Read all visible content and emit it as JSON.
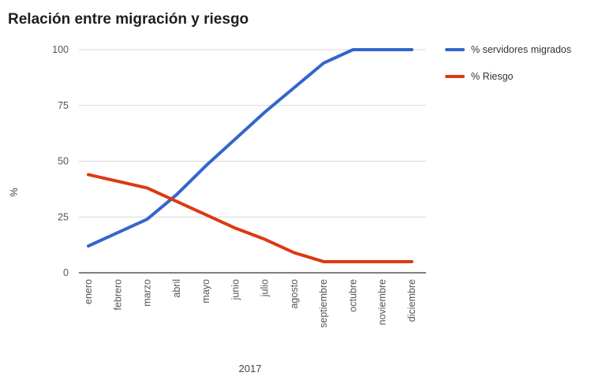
{
  "chart_data": {
    "type": "line",
    "title": "Relación entre migración y riesgo",
    "xlabel": "2017",
    "ylabel": "%",
    "ylim": [
      0,
      100
    ],
    "yticks": [
      "0",
      "25",
      "50",
      "75",
      "100"
    ],
    "grid": true,
    "legend_position": "right",
    "categories": [
      "enero",
      "febrero",
      "marzo",
      "abril",
      "mayo",
      "junio",
      "julio",
      "agosto",
      "septiembre",
      "octubre",
      "noviembre",
      "diciembre"
    ],
    "series": [
      {
        "name": "% servidores migrados",
        "color": "#3366cc",
        "values": [
          12,
          18,
          24,
          35,
          48,
          60,
          72,
          83,
          94,
          100,
          100,
          100
        ]
      },
      {
        "name": "% Riesgo",
        "color": "#dc3912",
        "values": [
          44,
          41,
          38,
          32,
          26,
          20,
          15,
          9,
          5,
          5,
          5,
          5
        ]
      }
    ]
  }
}
